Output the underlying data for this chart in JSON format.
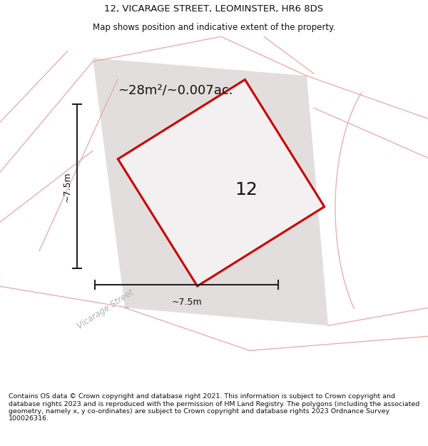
{
  "title_line1": "12, VICARAGE STREET, LEOMINSTER, HR6 8DS",
  "title_line2": "Map shows position and indicative extent of the property.",
  "footer_text": "Contains OS data © Crown copyright and database right 2021. This information is subject to Crown copyright and database rights 2023 and is reproduced with the permission of HM Land Registry. The polygons (including the associated geometry, namely x, y co-ordinates) are subject to Crown copyright and database rights 2023 Ordnance Survey 100026316.",
  "area_label": "~28m²/~0.007ac.",
  "width_label": "~7.5m",
  "height_label": "~7.5m",
  "plot_number": "12",
  "plot_edge_color": "#cc0000",
  "pink_line_color": "#e8a8a8",
  "street_label": "Vicarage Street",
  "title_fontsize": 9.5,
  "subtitle_fontsize": 8.5,
  "footer_fontsize": 6.8,
  "area_label_fontsize": 13,
  "dim_label_fontsize": 9,
  "plot_number_fontsize": 18,
  "street_label_fontsize": 8.5
}
